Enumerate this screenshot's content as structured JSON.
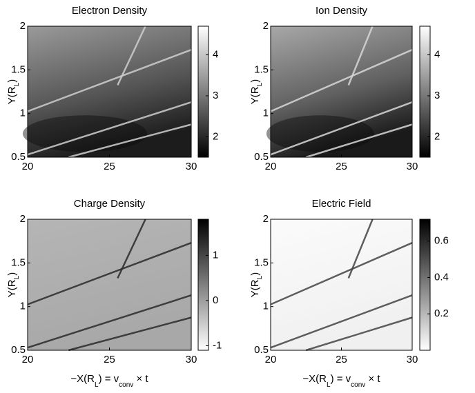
{
  "chart_data": [
    {
      "type": "heatmap",
      "title": "Electron Density",
      "colormap": "gray",
      "ylabel": [
        "Y(R",
        "L",
        ")"
      ],
      "xlim": [
        20,
        30
      ],
      "xticks": [
        20,
        25,
        30
      ],
      "ylim": [
        0.5,
        2
      ],
      "yticks": [
        0.5,
        1,
        1.5,
        2
      ],
      "clim": [
        1.5,
        4.7
      ],
      "cticks": [
        2,
        3,
        4
      ]
    },
    {
      "type": "heatmap",
      "title": "Ion Density",
      "colormap": "gray",
      "ylabel": [
        "Y(R",
        "L",
        ")"
      ],
      "xlim": [
        20,
        30
      ],
      "xticks": [
        20,
        25,
        30
      ],
      "ylim": [
        0.5,
        2
      ],
      "yticks": [
        0.5,
        1,
        1.5,
        2
      ],
      "clim": [
        1.5,
        4.7
      ],
      "cticks": [
        2,
        3,
        4
      ]
    },
    {
      "type": "heatmap",
      "title": "Charge Density",
      "colormap": "gray_r",
      "ylabel": [
        "Y(R",
        "L",
        ")"
      ],
      "xlabel": [
        "−X(R",
        "L",
        ") = v",
        "conv",
        " × t"
      ],
      "xlim": [
        20,
        30
      ],
      "xticks": [
        20,
        25,
        30
      ],
      "ylim": [
        0.5,
        2
      ],
      "yticks": [
        0.5,
        1,
        1.5,
        2
      ],
      "clim": [
        -1.1,
        1.8
      ],
      "cticks": [
        -1,
        0,
        1
      ]
    },
    {
      "type": "heatmap",
      "title": "Electric Field",
      "colormap": "gray_r",
      "ylabel": [
        "Y(R",
        "L",
        ")"
      ],
      "xlabel": [
        "−X(R",
        "L",
        ") = v",
        "conv",
        " × t"
      ],
      "xlim": [
        20,
        30
      ],
      "xticks": [
        20,
        25,
        30
      ],
      "ylim": [
        0.5,
        2
      ],
      "yticks": [
        0.5,
        1,
        1.5,
        2
      ],
      "clim": [
        0,
        0.72
      ],
      "cticks": [
        0.2,
        0.4,
        0.6
      ]
    }
  ]
}
